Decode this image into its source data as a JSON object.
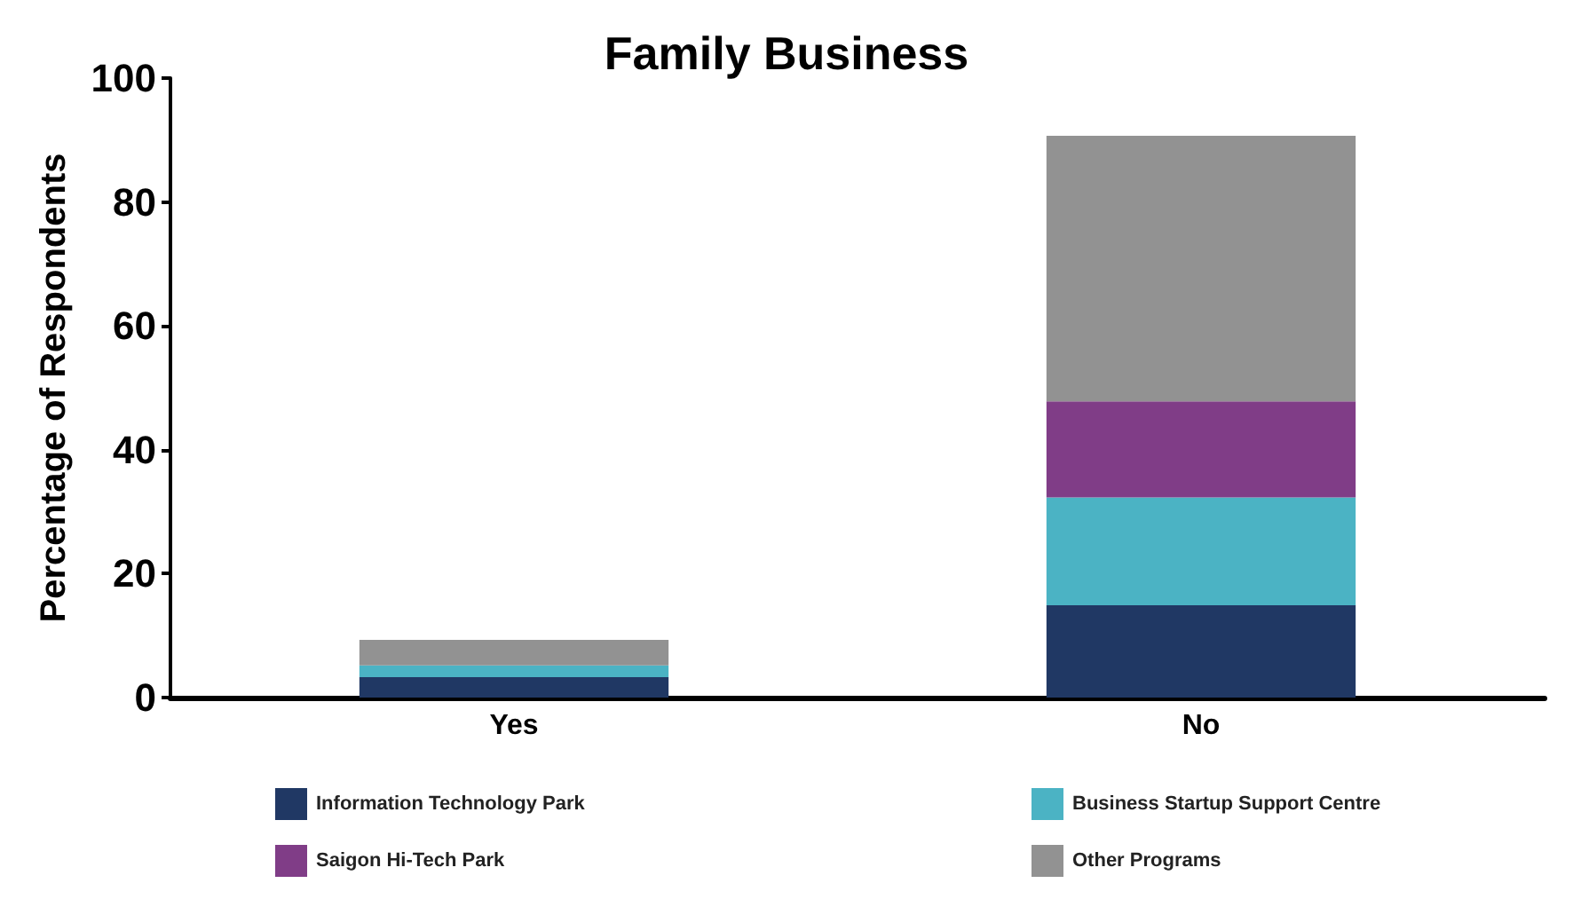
{
  "chart_data": {
    "type": "bar",
    "title": "Family Business",
    "ylabel": "Percentage of Respondents",
    "categories": [
      "Yes",
      "No"
    ],
    "stacked": true,
    "series": [
      {
        "name": "Information Technology Park",
        "color": "#203864",
        "values": [
          3.3,
          14.9
        ]
      },
      {
        "name": "Business Startup Support Centre",
        "color": "#4bb3c4",
        "values": [
          1.9,
          17.4
        ]
      },
      {
        "name": "Saigon Hi-Tech Park",
        "color": "#803d87",
        "values": [
          0,
          15.5
        ]
      },
      {
        "name": "Other Programs",
        "color": "#929292",
        "values": [
          4.1,
          42.9
        ]
      }
    ],
    "ylim": [
      0,
      100
    ],
    "yticks": [
      0,
      20,
      40,
      60,
      80,
      100
    ],
    "grid": false,
    "legend": "bottom"
  }
}
